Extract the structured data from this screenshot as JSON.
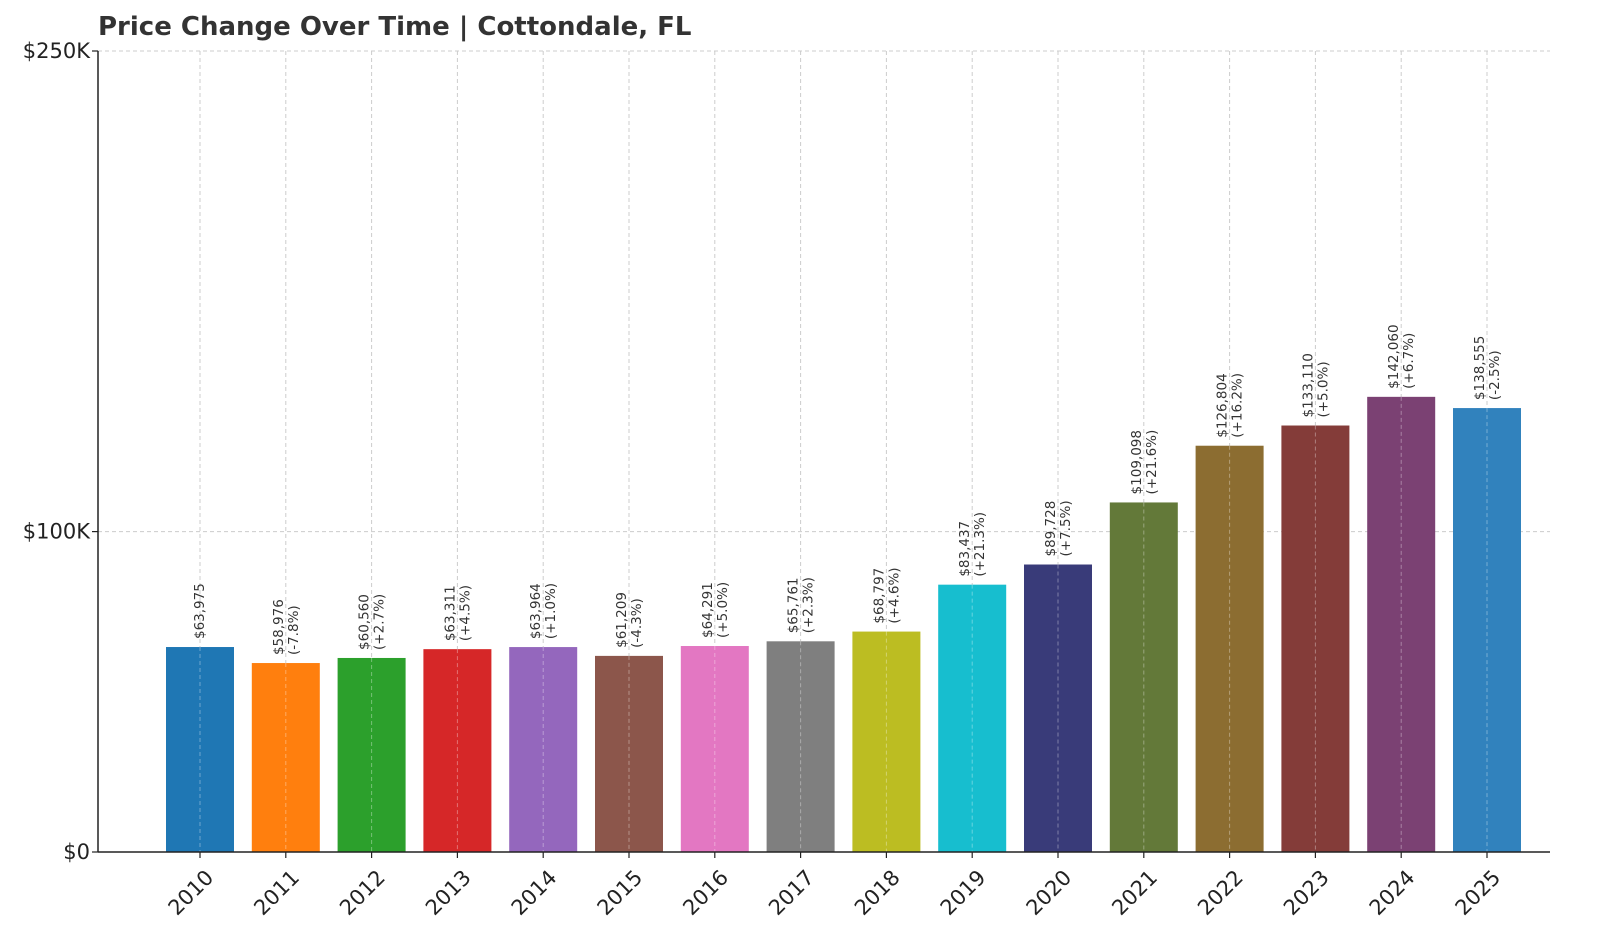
{
  "chart_data": {
    "type": "bar",
    "title": "Price Change Over Time | Cottondale, FL",
    "xlabel": "",
    "ylabel": "",
    "ylim": [
      0,
      250000
    ],
    "y_ticks": [
      {
        "value": 0,
        "label": "$0"
      },
      {
        "value": 100000,
        "label": "$100K"
      },
      {
        "value": 250000,
        "label": "$250K"
      }
    ],
    "grid": true,
    "categories": [
      "2010",
      "2011",
      "2012",
      "2013",
      "2014",
      "2015",
      "2016",
      "2017",
      "2018",
      "2019",
      "2020",
      "2021",
      "2022",
      "2023",
      "2024",
      "2025"
    ],
    "values": [
      63975,
      58976,
      60560,
      63311,
      63964,
      61209,
      64291,
      65761,
      68797,
      83437,
      89728,
      109098,
      126804,
      133110,
      142060,
      138555
    ],
    "value_labels": [
      "$63,975",
      "$58,976",
      "$60,560",
      "$63,311",
      "$63,964",
      "$61,209",
      "$64,291",
      "$65,761",
      "$68,797",
      "$83,437",
      "$89,728",
      "$109,098",
      "$126,804",
      "$133,110",
      "$142,060",
      "$138,555"
    ],
    "change_labels": [
      "",
      "(-7.8%)",
      "(+2.7%)",
      "(+4.5%)",
      "(+1.0%)",
      "(-4.3%)",
      "(+5.0%)",
      "(+2.3%)",
      "(+4.6%)",
      "(+21.3%)",
      "(+7.5%)",
      "(+21.6%)",
      "(+16.2%)",
      "(+5.0%)",
      "(+6.7%)",
      "(-2.5%)"
    ],
    "colors": [
      "#1f77b4",
      "#ff7f0e",
      "#2ca02c",
      "#d62728",
      "#9467bd",
      "#8c564b",
      "#e377c2",
      "#7f7f7f",
      "#bcbd22",
      "#17becf",
      "#393b79",
      "#637939",
      "#8c6d31",
      "#843c39",
      "#7b4173",
      "#3182bd"
    ]
  }
}
